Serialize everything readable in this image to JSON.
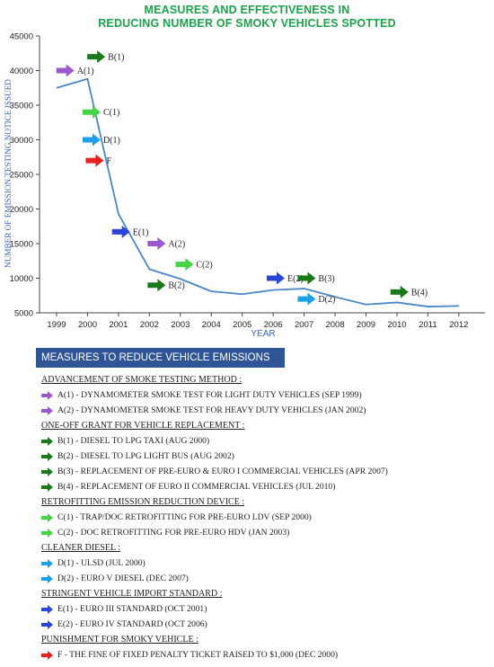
{
  "chart_data": {
    "type": "line",
    "title_line1": "MEASURES AND EFFECTIVENESS IN",
    "title_line2": "REDUCING NUMBER OF SMOKY VEHICLES SPOTTED",
    "xlabel": "YEAR",
    "ylabel": "NUMBER OF EMISSION TESTING NOTICE ISSUED",
    "ylim": [
      5000,
      45000
    ],
    "yticks": [
      5000,
      10000,
      15000,
      20000,
      25000,
      30000,
      35000,
      40000,
      45000
    ],
    "xticks": [
      "1999",
      "2000",
      "2001",
      "2002",
      "2003",
      "2004",
      "2005",
      "2006",
      "2007",
      "2008",
      "2009",
      "2010",
      "2011",
      "2012"
    ],
    "series": [
      {
        "x": [
          1999,
          2000,
          2001,
          2002,
          2003,
          2004,
          2005,
          2006,
          2007,
          2008,
          2009,
          2010,
          2011,
          2012
        ],
        "values": [
          37500,
          38800,
          19300,
          11300,
          9900,
          8100,
          7700,
          8300,
          8500,
          7300,
          6200,
          6500,
          5900,
          6000
        ]
      }
    ],
    "color": "#4a86c8",
    "annotations": [
      {
        "label": "B(1)",
        "x": 2000.05,
        "y": 42000,
        "color": "#1a7a1a"
      },
      {
        "label": "A(1)",
        "x": 1999.05,
        "y": 40000,
        "color": "#9b59d0"
      },
      {
        "label": "C(1)",
        "x": 1999.9,
        "y": 34000,
        "color": "#44d444"
      },
      {
        "label": "D(1)",
        "x": 1999.9,
        "y": 30000,
        "color": "#1ea0e8"
      },
      {
        "label": "F",
        "x": 2000.0,
        "y": 27000,
        "color": "#e82020"
      },
      {
        "label": "E(1)",
        "x": 2000.85,
        "y": 16700,
        "color": "#2a45d8"
      },
      {
        "label": "A(2)",
        "x": 2002.0,
        "y": 15000,
        "color": "#9b59d0"
      },
      {
        "label": "C(2)",
        "x": 2002.9,
        "y": 12000,
        "color": "#44d444"
      },
      {
        "label": "B(2)",
        "x": 2002.0,
        "y": 9000,
        "color": "#1a7a1a"
      },
      {
        "label": "E(2)",
        "x": 2005.85,
        "y": 10000,
        "color": "#2a45d8"
      },
      {
        "label": "B(3)",
        "x": 2006.85,
        "y": 10000,
        "color": "#1a7a1a"
      },
      {
        "label": "D(2)",
        "x": 2006.85,
        "y": 7000,
        "color": "#1ea0e8"
      },
      {
        "label": "B(4)",
        "x": 2009.85,
        "y": 8000,
        "color": "#1a7a1a"
      }
    ]
  },
  "legend": {
    "header": "MEASURES TO REDUCE VEHICLE EMISSIONS",
    "groups": [
      {
        "title": "ADVANCEMENT OF SMOKE TESTING METHOD :",
        "items": [
          {
            "code": "A(1)",
            "text": " - DYNAMOMETER SMOKE TEST FOR LIGHT DUTY VEHICLES (SEP 1999)",
            "color": "#9b59d0"
          },
          {
            "code": "A(2)",
            "text": " - DYNAMOMETER SMOKE TEST FOR HEAVY DUTY VEHICLES (JAN 2002)",
            "color": "#9b59d0"
          }
        ]
      },
      {
        "title": "ONE-OFF GRANT FOR VEHICLE REPLACEMENT :",
        "items": [
          {
            "code": "B(1)",
            "text": " - DIESEL TO LPG TAXI (AUG 2000)",
            "color": "#1a7a1a"
          },
          {
            "code": "B(2)",
            "text": " - DIESEL TO LPG LIGHT BUS (AUG 2002)",
            "color": "#1a7a1a"
          },
          {
            "code": "B(3)",
            "text": " - REPLACEMENT OF PRE-EURO & EURO I COMMERCIAL VEHICLES (APR 2007)",
            "color": "#1a7a1a"
          },
          {
            "code": "B(4)",
            "text": " - REPLACEMENT OF EURO II COMMERCIAL VEHICLES (JUL 2010)",
            "color": "#1a7a1a"
          }
        ]
      },
      {
        "title": "RETROFITTING EMISSION REDUCTION DEVICE :",
        "items": [
          {
            "code": "C(1)",
            "text": " - TRAP/DOC RETROFITTING FOR PRE-EURO LDV (SEP 2000)",
            "color": "#44d444"
          },
          {
            "code": "C(2)",
            "text": " - DOC RETROFITTING FOR PRE-EURO HDV (JAN 2003)",
            "color": "#44d444"
          }
        ]
      },
      {
        "title": "CLEANER DIESEL :",
        "items": [
          {
            "code": "D(1)",
            "text": " - ULSD (JUL 2000)",
            "color": "#1ea0e8"
          },
          {
            "code": "D(2)",
            "text": " - EURO V DIESEL (DEC 2007)",
            "color": "#1ea0e8"
          }
        ]
      },
      {
        "title": "STRINGENT VEHICLE IMPORT STANDARD :",
        "items": [
          {
            "code": "E(1)",
            "text": " - EURO III STANDARD (OCT 2001)",
            "color": "#2a45d8"
          },
          {
            "code": "E(2)",
            "text": " - EURO IV STANDARD (OCT 2006)",
            "color": "#2a45d8"
          }
        ]
      },
      {
        "title": "PUNISHMENT FOR SMOKY VEHICLE :",
        "items": [
          {
            "code": "F",
            "text": " - THE FINE OF FIXED PENALTY TICKET RAISED TO $1,000 (DEC 2000)",
            "color": "#e82020"
          }
        ]
      }
    ]
  }
}
